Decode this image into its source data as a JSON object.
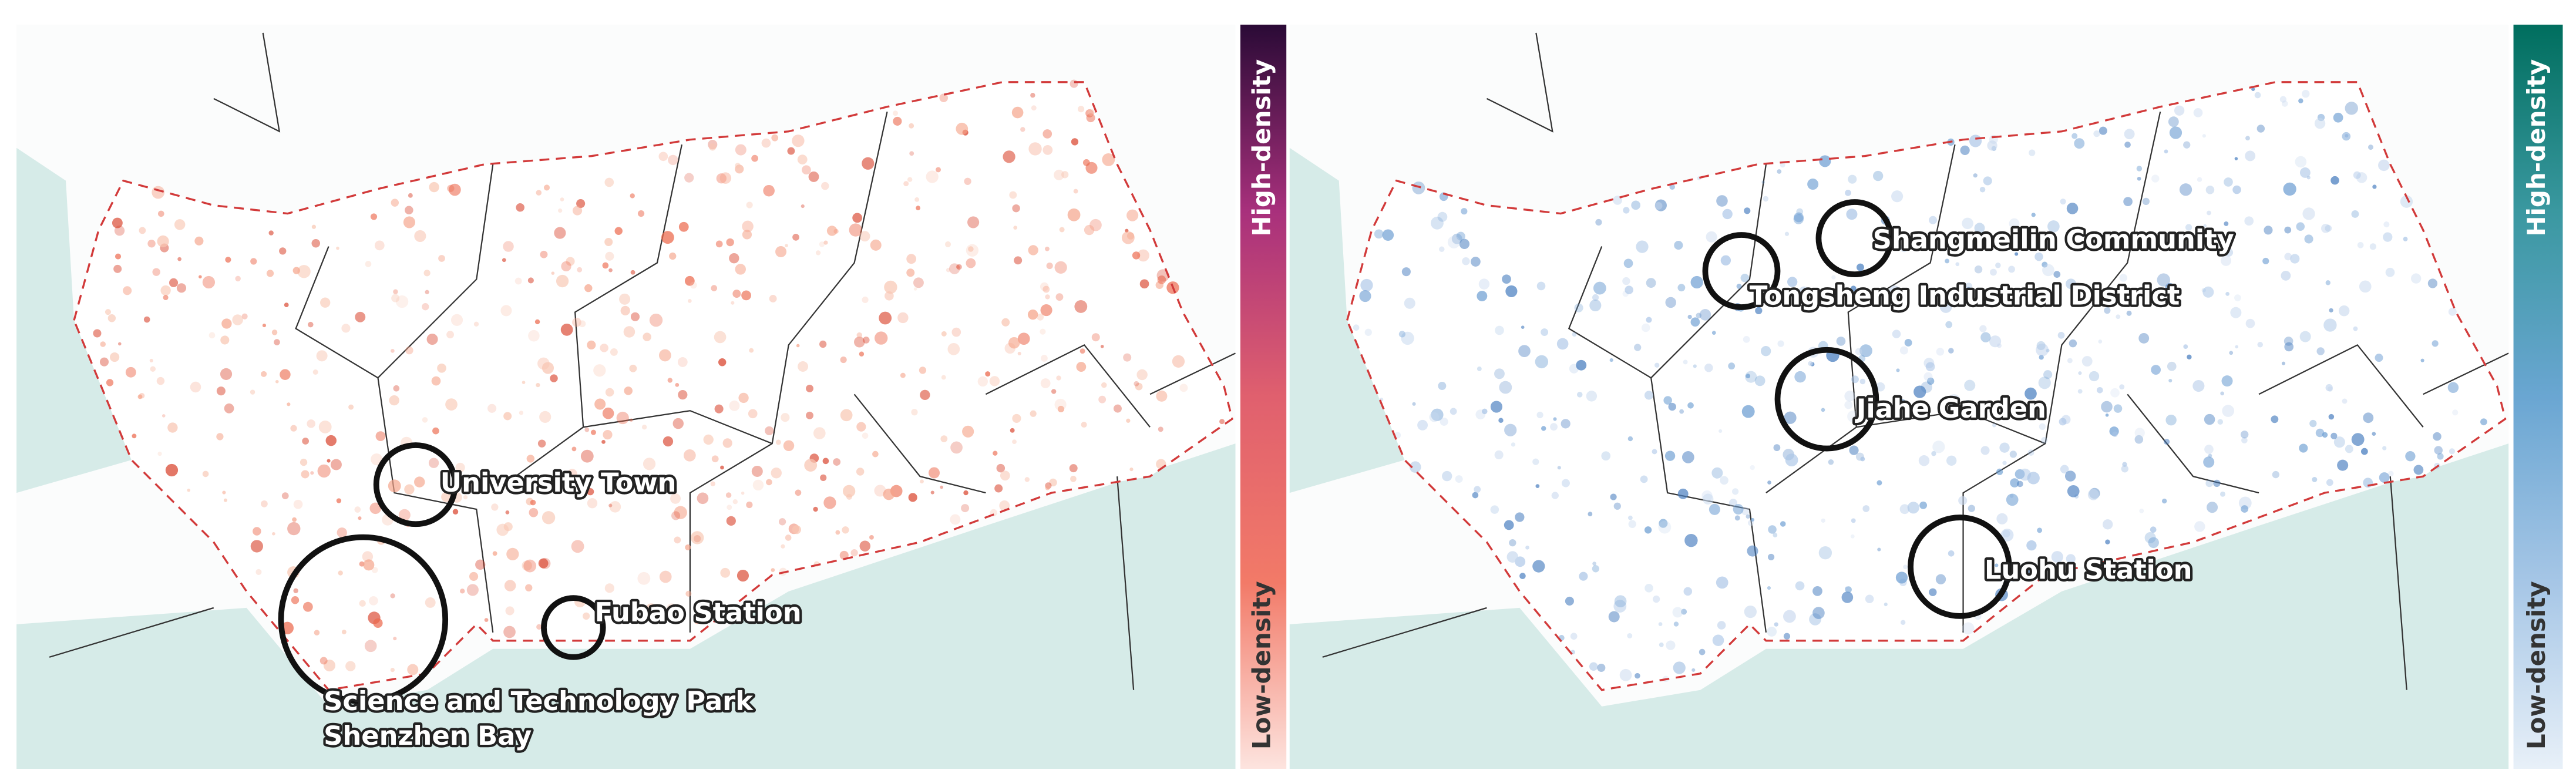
{
  "panels": [
    {
      "annotations": [
        {
          "label": "University Town"
        },
        {
          "lines": [
            "Science and Technology Park",
            "Shenzhen Bay"
          ]
        },
        {
          "label": "Fubao Station"
        }
      ],
      "colorbar": {
        "high": "High-density",
        "low": "Low-density",
        "colors": [
          "#fde4df",
          "#f27a68",
          "#e0606e",
          "#a8307c",
          "#2a0a36"
        ]
      }
    },
    {
      "annotations": [
        {
          "label": "Shangmeilin Community"
        },
        {
          "label": "Tongsheng Industrial District"
        },
        {
          "label": "Jiahe Garden"
        },
        {
          "label": "Luohu Station"
        }
      ],
      "colorbar": {
        "high": "High-density",
        "low": "Low-density",
        "colors": [
          "#e8f0f8",
          "#a6c6e6",
          "#6aa6d2",
          "#3a98a0",
          "#006e5e"
        ]
      }
    }
  ]
}
